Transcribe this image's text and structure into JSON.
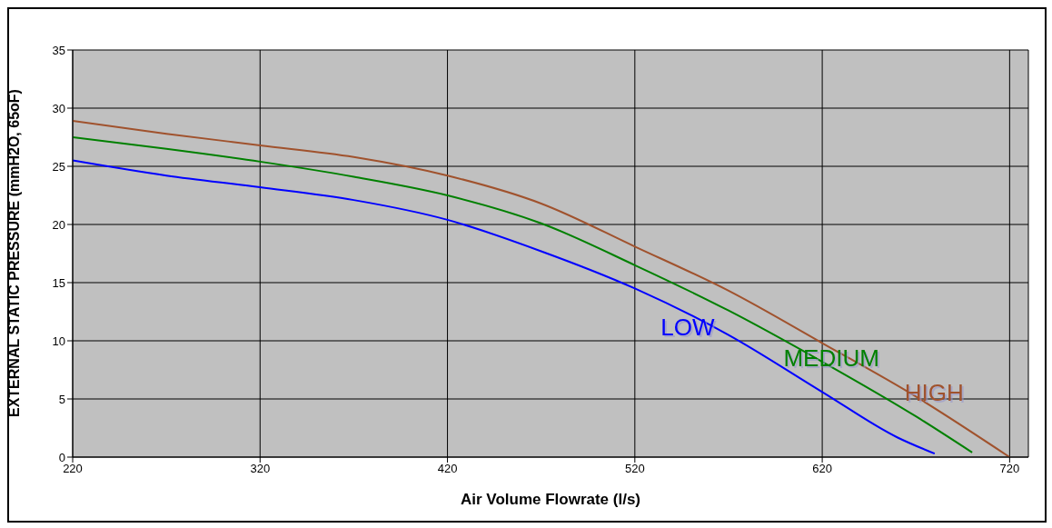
{
  "chart_data": {
    "type": "line",
    "xlabel": "Air Volume Flowrate (l/s)",
    "ylabel": "EXTERNAL STATIC PRESSURE (mmH2O, 65oF)",
    "xlim": [
      220,
      730
    ],
    "xticks": [
      220,
      320,
      420,
      520,
      620,
      720
    ],
    "ylim": [
      0,
      35
    ],
    "yticks": [
      0,
      5,
      10,
      15,
      20,
      25,
      30,
      35
    ],
    "grid": true,
    "legend": false,
    "marker": "none",
    "line_style": "solid",
    "series": [
      {
        "name": "LOW",
        "color": "#0000ff",
        "x": [
          220,
          270,
          320,
          370,
          420,
          470,
          520,
          570,
          620,
          660,
          680
        ],
        "values": [
          25.5,
          24.2,
          23.2,
          22.1,
          20.4,
          17.7,
          14.5,
          10.5,
          5.6,
          1.7,
          0.3
        ]
      },
      {
        "name": "MEDIUM",
        "color": "#008000",
        "x": [
          220,
          270,
          320,
          370,
          420,
          470,
          520,
          570,
          620,
          670,
          700
        ],
        "values": [
          27.5,
          26.5,
          25.4,
          24.1,
          22.5,
          20.1,
          16.5,
          12.6,
          8.2,
          3.5,
          0.4
        ]
      },
      {
        "name": "HIGH",
        "color": "#a0522d",
        "x": [
          220,
          270,
          320,
          370,
          420,
          470,
          520,
          570,
          620,
          670,
          720
        ],
        "values": [
          28.9,
          27.8,
          26.8,
          25.8,
          24.2,
          21.8,
          18.1,
          14.3,
          9.8,
          5.2,
          0
        ]
      }
    ]
  }
}
